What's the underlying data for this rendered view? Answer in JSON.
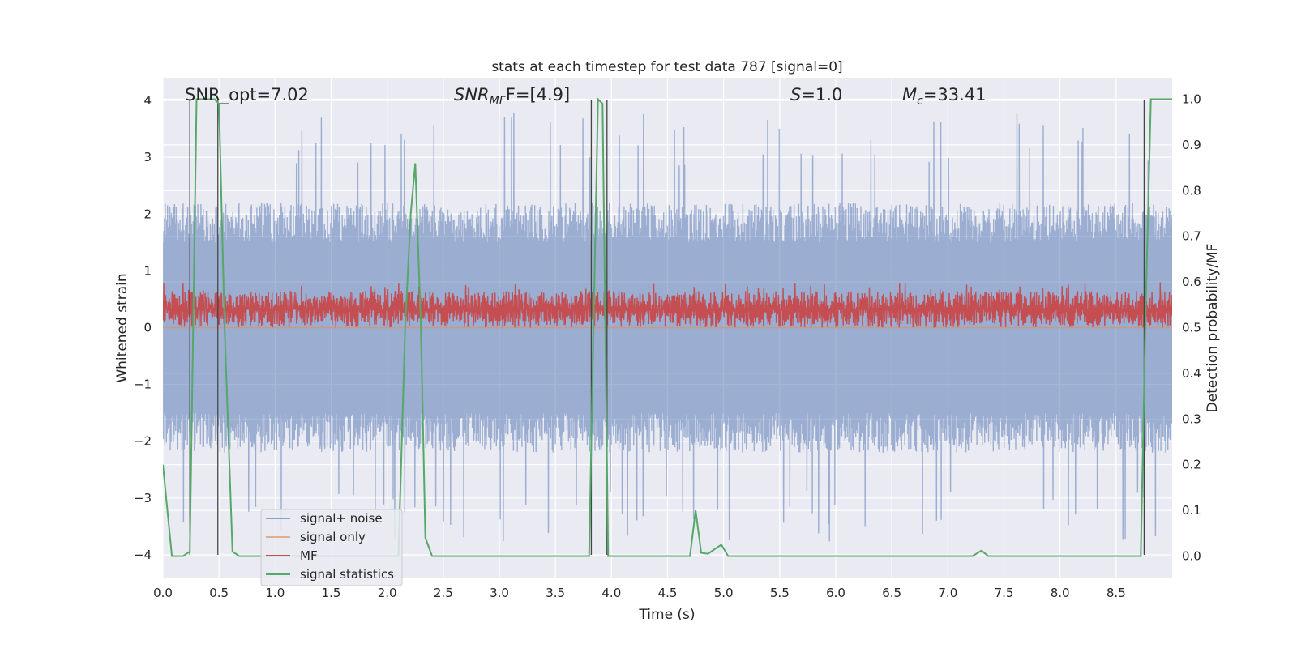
{
  "chart_data": {
    "type": "line",
    "title": "stats at each timestep for test data 787 [signal=0]",
    "xlabel": "Time (s)",
    "ylabel": "Whitened strain",
    "y2label": "Detection probability/MF",
    "xlim": [
      0.0,
      9.0
    ],
    "ylim": [
      -4.4,
      4.4
    ],
    "y2lim": [
      -0.047,
      1.047
    ],
    "grid": true,
    "xticks": [
      0.0,
      0.5,
      1.0,
      1.5,
      2.0,
      2.5,
      3.0,
      3.5,
      4.0,
      4.5,
      5.0,
      5.5,
      6.0,
      6.5,
      7.0,
      7.5,
      8.0,
      8.5
    ],
    "xtick_labels": [
      "0.0",
      "0.5",
      "1.0",
      "1.5",
      "2.0",
      "2.5",
      "3.0",
      "3.5",
      "4.0",
      "4.5",
      "5.0",
      "5.5",
      "6.0",
      "6.5",
      "7.0",
      "7.5",
      "8.0",
      "8.5"
    ],
    "yticks": [
      -4,
      -3,
      -2,
      -1,
      0,
      1,
      2,
      3,
      4
    ],
    "ytick_labels": [
      "−4",
      "−3",
      "−2",
      "−1",
      "0",
      "1",
      "2",
      "3",
      "4"
    ],
    "y2ticks": [
      0.0,
      0.1,
      0.2,
      0.3,
      0.4,
      0.5,
      0.6,
      0.7,
      0.8,
      0.9,
      1.0
    ],
    "y2tick_labels": [
      "0.0",
      "0.1",
      "0.2",
      "0.3",
      "0.4",
      "0.5",
      "0.6",
      "0.7",
      "0.8",
      "0.9",
      "1.0"
    ],
    "annotations": {
      "snr_opt": "SNR_opt=7.02",
      "snr_mf_main": "SNR",
      "snr_mf_sub": "MF",
      "snr_mf_value": "F=[4.9]",
      "s_main": "S",
      "s_value": "=1.0",
      "mc_main": "M",
      "mc_sub": "c",
      "mc_value": "=33.41"
    },
    "vlines": [
      0.24,
      0.49,
      3.82,
      3.96,
      8.75
    ],
    "series": [
      {
        "name": "signal+ noise",
        "color": "#4c72b0",
        "axis": "left",
        "style": "noise",
        "amplitude_typical": 2.0,
        "amplitude_peak": 3.8
      },
      {
        "name": "signal only",
        "color": "#dd8452",
        "axis": "left",
        "style": "flat",
        "values_x": [
          0.0,
          9.0
        ],
        "values_y": [
          0.0,
          0.0
        ]
      },
      {
        "name": "MF",
        "color": "#c44e52",
        "axis": "right",
        "style": "mf",
        "baseline": 0.54,
        "typical_high": 0.58,
        "peak_high": 0.6,
        "low": 0.5
      },
      {
        "name": "signal statistics",
        "color": "#55a868",
        "axis": "right",
        "style": "line",
        "x": [
          0.0,
          0.08,
          0.18,
          0.24,
          0.27,
          0.3,
          0.46,
          0.5,
          0.55,
          0.62,
          0.68,
          2.1,
          2.16,
          2.21,
          2.25,
          2.3,
          2.34,
          2.4,
          3.8,
          3.84,
          3.88,
          3.92,
          3.97,
          4.7,
          4.75,
          4.8,
          4.86,
          4.92,
          4.98,
          5.04,
          7.22,
          7.3,
          7.36,
          8.72,
          8.76,
          8.81,
          8.86,
          9.0
        ],
        "y": [
          0.2,
          0.0,
          0.0,
          0.01,
          0.5,
          1.0,
          1.0,
          0.99,
          0.5,
          0.01,
          0.0,
          0.0,
          0.5,
          0.75,
          0.86,
          0.5,
          0.04,
          0.0,
          0.0,
          0.5,
          1.0,
          0.99,
          0.0,
          0.0,
          0.1,
          0.007,
          0.005,
          0.015,
          0.025,
          0.0,
          0.0,
          0.012,
          0.0,
          0.0,
          0.5,
          1.0,
          1.0,
          1.0
        ]
      }
    ]
  }
}
